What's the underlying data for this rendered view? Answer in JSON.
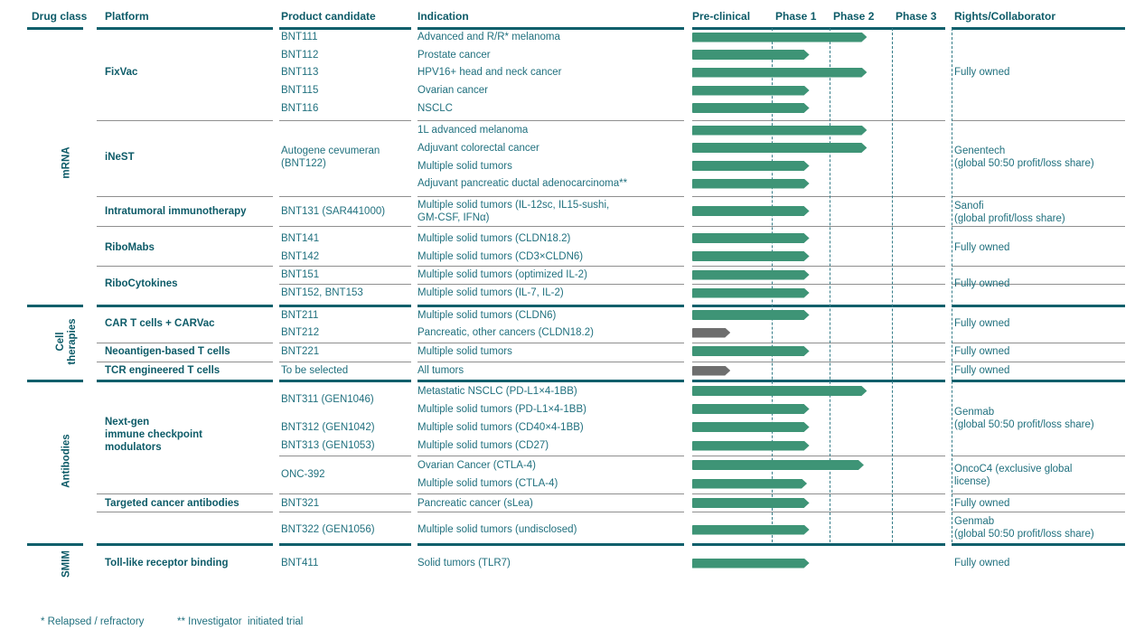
{
  "colors": {
    "accent_teal": "#0e5f6b",
    "text_teal": "#20707e",
    "bar_green": "#3e9476",
    "bar_gray": "#6e6e6e",
    "line_gray": "#8f8f8f"
  },
  "header": {
    "columns": [
      "Drug class",
      "Platform",
      "Product candidate",
      "Indication",
      "Pre-clinical",
      "Phase 1",
      "Phase 2",
      "Phase 3",
      "Rights/Collaborator"
    ]
  },
  "drug_classes": [
    {
      "label": "mRNA",
      "lines": [
        "mRNA"
      ]
    },
    {
      "label": "Cell therapies",
      "lines": [
        "Cell",
        "therapies"
      ]
    },
    {
      "label": "Antibodies",
      "lines": [
        "Antibodies"
      ]
    },
    {
      "label": "SMIM",
      "lines": [
        "SMIM"
      ]
    }
  ],
  "platforms": [
    {
      "lines": [
        "FixVac"
      ]
    },
    {
      "lines": [
        "iNeST"
      ]
    },
    {
      "lines": [
        "Intratumoral immunotherapy"
      ]
    },
    {
      "lines": [
        "RiboMabs"
      ]
    },
    {
      "lines": [
        "RiboCytokines"
      ]
    },
    {
      "lines": [
        "CAR T cells + CARVac"
      ]
    },
    {
      "lines": [
        "Neoantigen-based T cells"
      ]
    },
    {
      "lines": [
        "TCR engineered T cells"
      ]
    },
    {
      "lines": [
        "Next-gen",
        "immune checkpoint",
        "modulators"
      ]
    },
    {
      "lines": [
        "Targeted cancer antibodies"
      ]
    },
    {
      "lines": [
        "Toll-like receptor binding"
      ]
    }
  ],
  "merged_products": [
    {
      "lines": [
        "Autogene cevumeran",
        "(BNT122)"
      ]
    },
    {
      "lines": [
        "BNT311 (GEN1046)"
      ]
    },
    {
      "lines": [
        "ONC-392"
      ]
    }
  ],
  "rights": [
    {
      "lines": [
        "Fully owned"
      ]
    },
    {
      "lines": [
        "Genentech",
        "(global 50:50 profit/loss share)"
      ]
    },
    {
      "lines": [
        "Sanofi",
        "(global profit/loss share)"
      ]
    },
    {
      "lines": [
        "Fully owned"
      ]
    },
    {
      "lines": [
        "Fully owned"
      ]
    },
    {
      "lines": [
        "Fully owned"
      ]
    },
    {
      "lines": [
        "Fully owned"
      ]
    },
    {
      "lines": [
        "Fully owned"
      ]
    },
    {
      "lines": [
        "Genmab",
        "(global 50:50 profit/loss share)"
      ]
    },
    {
      "lines": [
        "OncoC4 (exclusive global",
        "license)"
      ]
    },
    {
      "lines": [
        "Fully owned"
      ]
    },
    {
      "lines": [
        "Genmab",
        "(global 50:50 profit/loss share)"
      ]
    },
    {
      "lines": [
        "Fully owned"
      ]
    }
  ],
  "chart_data": {
    "type": "gantt",
    "phase_scale": [
      "Pre-clinical",
      "Phase 1",
      "Phase 2",
      "Phase 3"
    ],
    "stage_units": "0-1 Pre-clinical, 1-2 Phase 1, 2-3 Phase 2, 3-4 Phase 3",
    "rows": [
      {
        "product": "BNT111",
        "indication": [
          "Advanced and R/R* melanoma"
        ],
        "stage_reached": 2.6,
        "stage_label": "Phase 2",
        "color": "green"
      },
      {
        "product": "BNT112",
        "indication": [
          "Prostate cancer"
        ],
        "stage_reached": 1.65,
        "stage_label": "Phase 1",
        "color": "green"
      },
      {
        "product": "BNT113",
        "indication": [
          "HPV16+ head and neck cancer"
        ],
        "stage_reached": 2.6,
        "stage_label": "Phase 2",
        "color": "green"
      },
      {
        "product": "BNT115",
        "indication": [
          "Ovarian cancer"
        ],
        "stage_reached": 1.65,
        "stage_label": "Phase 1",
        "color": "green"
      },
      {
        "product": "BNT116",
        "indication": [
          "NSCLC"
        ],
        "stage_reached": 1.65,
        "stage_label": "Phase 1",
        "color": "green"
      },
      {
        "product": "",
        "indication": [
          "1L advanced melanoma"
        ],
        "stage_reached": 2.6,
        "stage_label": "Phase 2",
        "color": "green"
      },
      {
        "product": "",
        "indication": [
          "Adjuvant colorectal cancer"
        ],
        "stage_reached": 2.6,
        "stage_label": "Phase 2",
        "color": "green"
      },
      {
        "product": "",
        "indication": [
          "Multiple solid tumors"
        ],
        "stage_reached": 1.65,
        "stage_label": "Phase 1",
        "color": "green"
      },
      {
        "product": "",
        "indication": [
          "Adjuvant pancreatic ductal adenocarcinoma**"
        ],
        "stage_reached": 1.65,
        "stage_label": "Phase 1",
        "color": "green"
      },
      {
        "product": "BNT131 (SAR441000)",
        "indication": [
          "Multiple solid tumors (IL-12sc, IL15-sushi,",
          "GM-CSF, IFNα)"
        ],
        "stage_reached": 1.65,
        "stage_label": "Phase 1",
        "color": "green"
      },
      {
        "product": "BNT141",
        "indication": [
          "Multiple solid tumors (CLDN18.2)"
        ],
        "stage_reached": 1.65,
        "stage_label": "Phase 1",
        "color": "green"
      },
      {
        "product": "BNT142",
        "indication": [
          "Multiple solid tumors (CD3×CLDN6)"
        ],
        "stage_reached": 1.65,
        "stage_label": "Phase 1",
        "color": "green"
      },
      {
        "product": "BNT151",
        "indication": [
          "Multiple solid tumors (optimized IL-2)"
        ],
        "stage_reached": 1.65,
        "stage_label": "Phase 1",
        "color": "green"
      },
      {
        "product": "BNT152, BNT153",
        "indication": [
          "Multiple solid tumors (IL-7, IL-2)"
        ],
        "stage_reached": 1.65,
        "stage_label": "Phase 1",
        "color": "green"
      },
      {
        "product": "BNT211",
        "indication": [
          "Multiple solid tumors (CLDN6)"
        ],
        "stage_reached": 1.65,
        "stage_label": "Phase 1",
        "color": "green"
      },
      {
        "product": "BNT212",
        "indication": [
          "Pancreatic, other cancers (CLDN18.2)"
        ],
        "stage_reached": 0.48,
        "stage_label": "Pre-clinical",
        "color": "gray"
      },
      {
        "product": "BNT221",
        "indication": [
          "Multiple solid tumors"
        ],
        "stage_reached": 1.65,
        "stage_label": "Phase 1",
        "color": "green"
      },
      {
        "product": "To be selected",
        "indication": [
          "All tumors"
        ],
        "stage_reached": 0.48,
        "stage_label": "Pre-clinical",
        "color": "gray"
      },
      {
        "product": "",
        "indication": [
          "Metastatic NSCLC (PD-L1×4-1BB)"
        ],
        "stage_reached": 2.6,
        "stage_label": "Phase 2",
        "color": "green"
      },
      {
        "product": "",
        "indication": [
          "Multiple solid tumors (PD-L1×4-1BB)"
        ],
        "stage_reached": 1.65,
        "stage_label": "Phase 1",
        "color": "green"
      },
      {
        "product": "BNT312 (GEN1042)",
        "indication": [
          "Multiple solid tumors (CD40×4-1BB)"
        ],
        "stage_reached": 1.65,
        "stage_label": "Phase 1",
        "color": "green"
      },
      {
        "product": "BNT313 (GEN1053)",
        "indication": [
          "Multiple solid tumors (CD27)"
        ],
        "stage_reached": 1.65,
        "stage_label": "Phase 1",
        "color": "green"
      },
      {
        "product": "",
        "indication": [
          "Ovarian Cancer (CTLA-4)"
        ],
        "stage_reached": 2.55,
        "stage_label": "Phase 2",
        "color": "green"
      },
      {
        "product": "",
        "indication": [
          "Multiple solid tumors (CTLA-4)"
        ],
        "stage_reached": 1.61,
        "stage_label": "Phase 1",
        "color": "green"
      },
      {
        "product": "BNT321",
        "indication": [
          "Pancreatic cancer (sLea)"
        ],
        "stage_reached": 1.65,
        "stage_label": "Phase 1",
        "color": "green"
      },
      {
        "product": "BNT322 (GEN1056)",
        "indication": [
          "Multiple solid tumors (undisclosed)"
        ],
        "stage_reached": 1.65,
        "stage_label": "Phase 1",
        "color": "green"
      },
      {
        "product": "BNT411",
        "indication": [
          "Solid tumors (TLR7)"
        ],
        "stage_reached": 1.65,
        "stage_label": "Phase 1",
        "color": "green"
      }
    ]
  },
  "footnotes": [
    "* Relapsed / refractory",
    "** Investigator  initiated trial"
  ]
}
